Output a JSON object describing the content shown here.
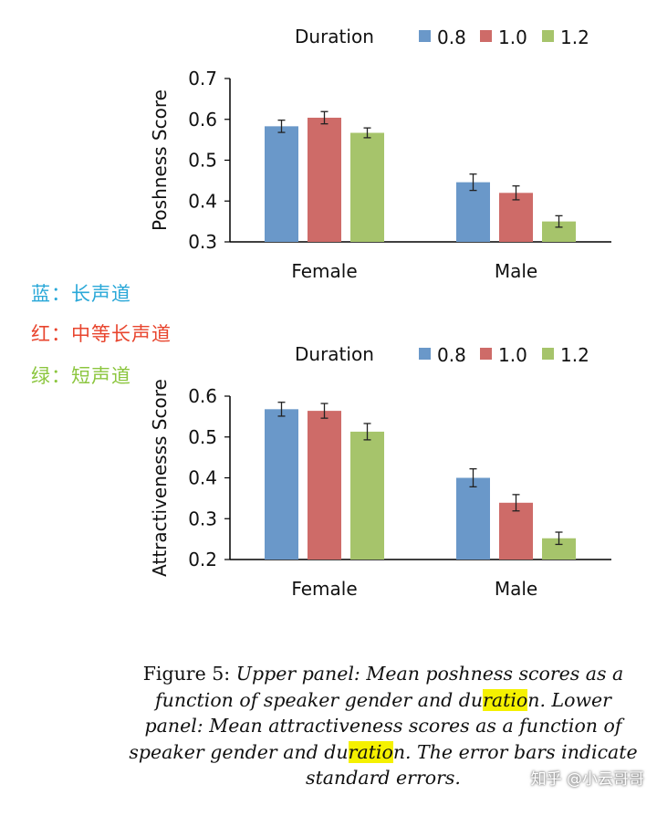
{
  "chart_data": [
    {
      "type": "bar",
      "categories": [
        "Female",
        "Male"
      ],
      "legend_title": "Duration",
      "ylabel": "Poshness Score",
      "ylim": [
        0.3,
        0.7
      ],
      "yticks": [
        "0.3",
        "0.4",
        "0.5",
        "0.6",
        "0.7"
      ],
      "series": [
        {
          "name": "0.8",
          "color": "#6a98c9",
          "values": [
            0.583,
            0.446
          ],
          "errors": [
            0.015,
            0.02
          ]
        },
        {
          "name": "1.0",
          "color": "#ce6b68",
          "values": [
            0.604,
            0.42
          ],
          "errors": [
            0.015,
            0.017
          ]
        },
        {
          "name": "1.2",
          "color": "#a6c46b",
          "values": [
            0.567,
            0.35
          ],
          "errors": [
            0.012,
            0.014
          ]
        }
      ]
    },
    {
      "type": "bar",
      "categories": [
        "Female",
        "Male"
      ],
      "legend_title": "Duration",
      "ylabel": "Attractivenesss Score",
      "ylim": [
        0.2,
        0.6
      ],
      "yticks": [
        "0.2",
        "0.3",
        "0.4",
        "0.5",
        "0.6"
      ],
      "series": [
        {
          "name": "0.8",
          "color": "#6a98c9",
          "values": [
            0.568,
            0.4
          ],
          "errors": [
            0.017,
            0.022
          ]
        },
        {
          "name": "1.0",
          "color": "#ce6b68",
          "values": [
            0.564,
            0.339
          ],
          "errors": [
            0.018,
            0.02
          ]
        },
        {
          "name": "1.2",
          "color": "#a6c46b",
          "values": [
            0.513,
            0.252
          ],
          "errors": [
            0.02,
            0.015
          ]
        }
      ]
    }
  ],
  "notes": [
    {
      "text": "蓝：长声道",
      "color": "#2aa8d8"
    },
    {
      "text": "红：中等长声道",
      "color": "#e8452e"
    },
    {
      "text": "绿：短声道",
      "color": "#8cc63f"
    }
  ],
  "caption": {
    "lead": "Figure 5: ",
    "part1": "Upper panel: Mean poshness scores as a function of speaker gender and du",
    "hl1": "ratio",
    "part2": "n. Lower panel: Mean attractiveness scores as a function of speaker gender and du",
    "hl2": "ratio",
    "part3": "n. The error bars indicate standard errors."
  },
  "watermark": "知乎 @小云哥哥"
}
